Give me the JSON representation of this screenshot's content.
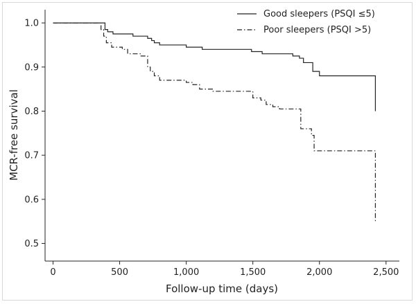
{
  "chart_data": {
    "type": "line",
    "title": "",
    "xlabel": "Follow-up time (days)",
    "ylabel": "MCR-free survival",
    "xlim": [
      -60,
      2600
    ],
    "ylim": [
      0.46,
      1.03
    ],
    "xticks": [
      0,
      500,
      1000,
      1500,
      2000,
      2500
    ],
    "xtick_labels": [
      "0",
      "500",
      "1,000",
      "1,500",
      "2,000",
      "2,500"
    ],
    "yticks": [
      0.5,
      0.6,
      0.7,
      0.8,
      0.9,
      1.0
    ],
    "ytick_labels": [
      "0.5",
      "0.6",
      "0.7",
      "0.8",
      "0.9",
      "1.0"
    ],
    "grid": false,
    "legend_position": "top-right",
    "series": [
      {
        "name": "Good sleepers (PSQI ≤5)",
        "line_style": "solid",
        "color": "#222222",
        "x": [
          0,
          360,
          390,
          410,
          450,
          520,
          600,
          690,
          710,
          740,
          760,
          800,
          900,
          1000,
          1060,
          1120,
          1300,
          1450,
          1490,
          1550,
          1570,
          1780,
          1800,
          1850,
          1880,
          1950,
          2000,
          2420,
          2420
        ],
        "y": [
          1.0,
          1.0,
          0.985,
          0.98,
          0.975,
          0.975,
          0.97,
          0.97,
          0.965,
          0.96,
          0.955,
          0.95,
          0.95,
          0.945,
          0.945,
          0.94,
          0.94,
          0.94,
          0.935,
          0.935,
          0.93,
          0.93,
          0.925,
          0.92,
          0.91,
          0.89,
          0.88,
          0.88,
          0.8
        ]
      },
      {
        "name": "Poor sleepers (PSQI >5)",
        "line_style": "dashdot",
        "color": "#222222",
        "x": [
          0,
          350,
          360,
          380,
          400,
          440,
          520,
          560,
          660,
          710,
          730,
          760,
          800,
          1000,
          1050,
          1100,
          1200,
          1480,
          1500,
          1560,
          1600,
          1650,
          1700,
          1860,
          1870,
          1940,
          1960,
          2420,
          2420
        ],
        "y": [
          1.0,
          1.0,
          0.985,
          0.97,
          0.955,
          0.945,
          0.94,
          0.93,
          0.925,
          0.9,
          0.89,
          0.88,
          0.87,
          0.865,
          0.86,
          0.85,
          0.845,
          0.845,
          0.83,
          0.825,
          0.815,
          0.81,
          0.805,
          0.76,
          0.76,
          0.745,
          0.71,
          0.71,
          0.55
        ]
      }
    ]
  }
}
